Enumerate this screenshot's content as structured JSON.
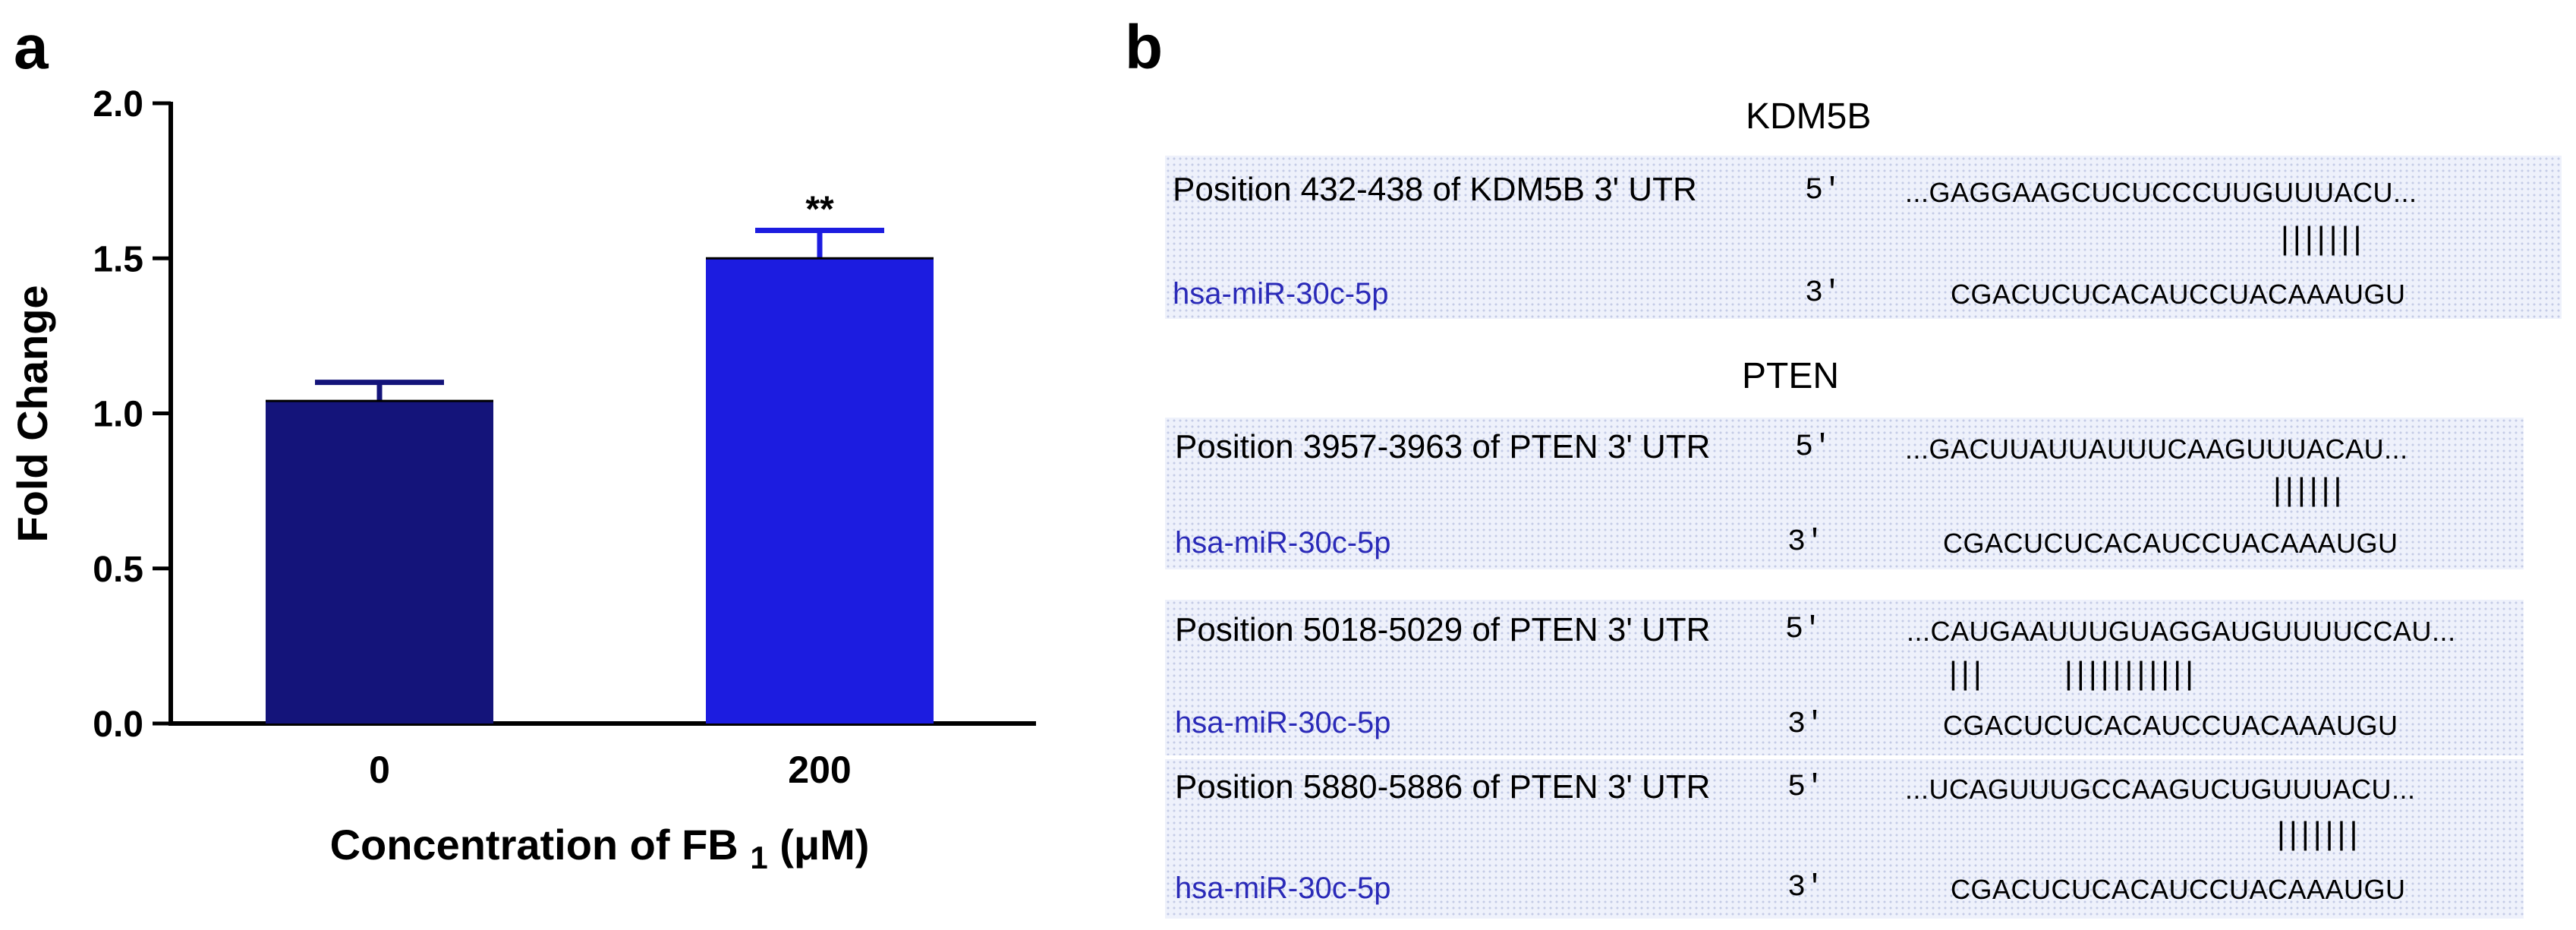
{
  "panel_a": {
    "letter": "a"
  },
  "panel_b": {
    "letter": "b",
    "genes": [
      "KDM5B",
      "PTEN"
    ],
    "alignments": [
      {
        "position": "Position 432-438 of KDM5B 3' UTR",
        "five": "5'",
        "target": "...GAGGAAGCUCUCCCUUGUUUACU...",
        "bars": "|||||||",
        "mirna": "hsa-miR-30c-5p",
        "three": "3'",
        "mirseq": "CGACUCUCACAUCCUACAAAUGU"
      },
      {
        "position": "Position 3957-3963 of PTEN 3' UTR",
        "five": "5'",
        "target": "...GACUUAUUAUUUCAAGUUUACAU...",
        "bars": "||||||",
        "mirna": "hsa-miR-30c-5p",
        "three": "3'",
        "mirseq": "CGACUCUCACAUCCUACAAAUGU"
      },
      {
        "position": "Position 5018-5029 of PTEN 3' UTR",
        "five": "5'",
        "target": "...CAUGAAUUUGUAGGAUGUUUUCCAU...",
        "bars_left": "|||",
        "bars": "|||||||||||",
        "mirna": "hsa-miR-30c-5p",
        "three": "3'",
        "mirseq": "CGACUCUCACAUCCUACAAAUGU"
      },
      {
        "position": "Position 5880-5886 of PTEN 3' UTR",
        "five": "5'",
        "target": "...UCAGUUUGCCAAGUCUGUUUACU...",
        "bars": "|||||||",
        "mirna": "hsa-miR-30c-5p",
        "three": "3'",
        "mirseq": "CGACUCUCACAUCCUACAAAUGU"
      }
    ]
  },
  "chart_data": {
    "type": "bar",
    "title": "",
    "categories": [
      "0",
      "200"
    ],
    "values": [
      1.04,
      1.5
    ],
    "errors": [
      0.06,
      0.09
    ],
    "bar_colors": [
      "#14147a",
      "#1c1ce0"
    ],
    "annotations": [
      "",
      "**"
    ],
    "ylim": [
      0,
      2.0
    ],
    "yticks": [
      "0.0",
      "0.5",
      "1.0",
      "1.5",
      "2.0"
    ],
    "ytick_values": [
      0,
      0.5,
      1.0,
      1.5,
      2.0
    ],
    "ylabel": "Fold Change",
    "xlabel": "Concentration of FB",
    "xlabel_subscript": "1",
    "xlabel_unit": "(μM)"
  }
}
